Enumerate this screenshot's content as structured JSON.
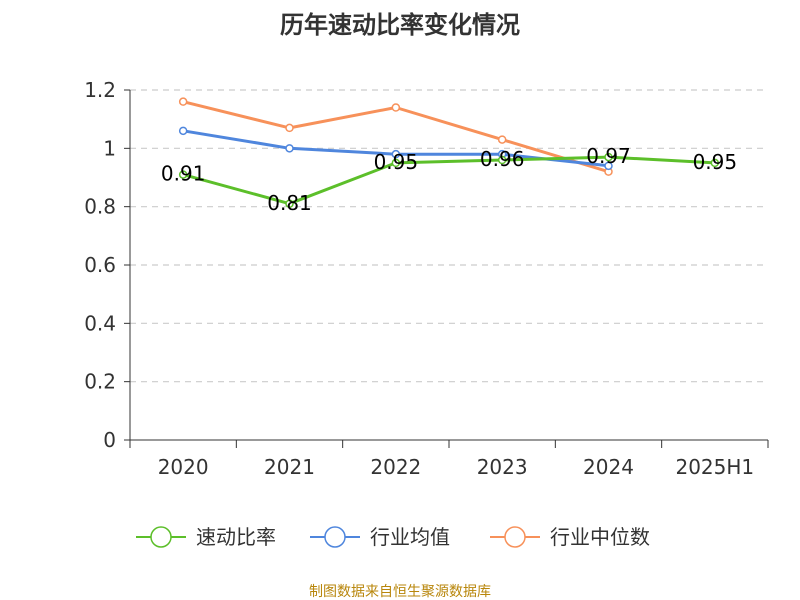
{
  "chart_data": {
    "type": "line",
    "title": "历年速动比率变化情况",
    "categories": [
      "2020",
      "2021",
      "2022",
      "2023",
      "2024",
      "2025H1"
    ],
    "ylim": [
      0,
      1.2
    ],
    "yticks": [
      "0",
      "0.2",
      "0.4",
      "0.6",
      "0.8",
      "1",
      "1.2"
    ],
    "grid": true,
    "legend_position": "bottom",
    "series": [
      {
        "name": "速动比率",
        "color": "#5cbf2a",
        "values": [
          0.91,
          0.81,
          0.95,
          0.96,
          0.97,
          0.95
        ],
        "labels": [
          "0.91",
          "0.81",
          "0.95",
          "0.96",
          "0.97",
          "0.95"
        ]
      },
      {
        "name": "行业均值",
        "color": "#4f86dd",
        "values": [
          1.06,
          1.0,
          0.98,
          0.98,
          0.94,
          null
        ]
      },
      {
        "name": "行业中位数",
        "color": "#f7915a",
        "values": [
          1.16,
          1.07,
          1.14,
          1.03,
          0.92,
          null
        ]
      }
    ]
  },
  "source": "制图数据来自恒生聚源数据库"
}
